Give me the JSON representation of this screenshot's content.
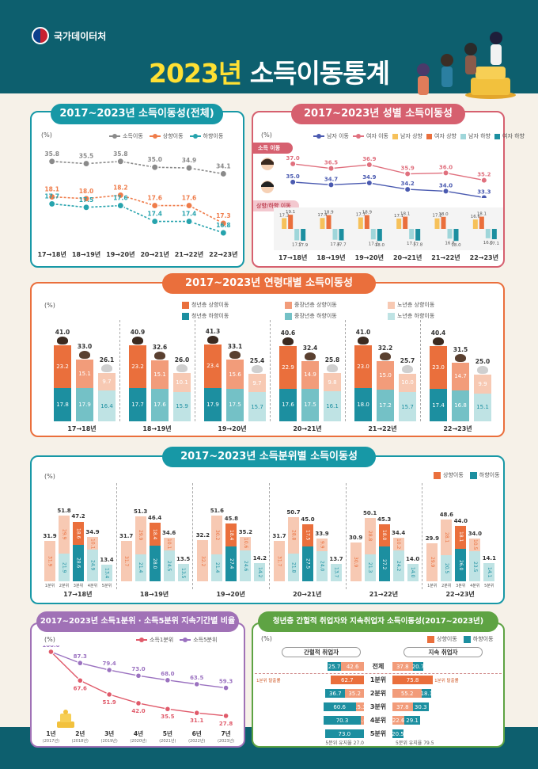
{
  "header": {
    "agency": "국가데이터처",
    "title_year": "2023년",
    "title_text": "소득이동통계"
  },
  "overall": {
    "title": "2017~2023년 소득이동성(전체)",
    "unit": "(%)",
    "legend": [
      "소득이동",
      "상향이동",
      "하향이동"
    ],
    "colors": [
      "#8a8a8a",
      "#ef7c4a",
      "#26a3ad"
    ],
    "periods": [
      "17→18년",
      "18→19년",
      "19→20년",
      "20→21년",
      "21→22년",
      "22→23년"
    ],
    "mobility": [
      35.8,
      35.5,
      35.8,
      35.0,
      34.9,
      34.1
    ],
    "upward": [
      18.1,
      18.0,
      18.2,
      17.6,
      17.6,
      17.3
    ],
    "downward": [
      17.7,
      17.5,
      17.6,
      17.4,
      17.4,
      16.8
    ]
  },
  "gender": {
    "title": "2017~2023년 성별  소득이동성",
    "unit": "(%)",
    "legend": [
      "남자 이동",
      "여자 이동",
      "남자 상향",
      "여자 상향",
      "남자 하향",
      "여자 하향"
    ],
    "tag_mobility": "소득 이동",
    "tag_updown": "상향/하향 이동",
    "periods": [
      "17→18년",
      "18→19년",
      "19→20년",
      "20→21년",
      "21→22년",
      "22→23년"
    ],
    "male_mobility": [
      35.0,
      34.7,
      34.9,
      34.2,
      34.0,
      33.3
    ],
    "female_mobility": [
      37.0,
      36.5,
      36.9,
      35.9,
      36.0,
      35.2
    ],
    "male_up": [
      17.3,
      17.4,
      17.7,
      17.1,
      17.2,
      16.6
    ],
    "female_up": [
      19.1,
      18.9,
      18.9,
      18.1,
      18.0,
      18.1
    ],
    "male_down": [
      17.7,
      17.4,
      17.2,
      17.1,
      16.8,
      16.6
    ],
    "female_down": [
      17.9,
      17.7,
      18.0,
      17.8,
      18.0,
      17.1
    ]
  },
  "age": {
    "title": "2017~2023년 연령대별  소득이동성",
    "unit": "(%)",
    "legend_up": [
      "청년층 상향이동",
      "중장년층 상향이동",
      "노년층 상향이동"
    ],
    "legend_down": [
      "청년층 하향이동",
      "중장년층 하향이동",
      "노년층 하향이동"
    ],
    "periods": [
      "17→18년",
      "18→19년",
      "19→20년",
      "20→21년",
      "21→22년",
      "22→23년"
    ],
    "groups": [
      {
        "youth": [
          41.0,
          23.2,
          17.8
        ],
        "middle": [
          33.0,
          15.1,
          17.9
        ],
        "senior": [
          26.1,
          9.7,
          16.4
        ]
      },
      {
        "youth": [
          40.9,
          23.2,
          17.7
        ],
        "middle": [
          32.6,
          15.1,
          17.6
        ],
        "senior": [
          26.0,
          10.1,
          15.9
        ]
      },
      {
        "youth": [
          41.3,
          23.4,
          17.9
        ],
        "middle": [
          33.1,
          15.6,
          17.5
        ],
        "senior": [
          25.4,
          9.7,
          15.7
        ]
      },
      {
        "youth": [
          40.6,
          22.9,
          17.6
        ],
        "middle": [
          32.4,
          14.9,
          17.5
        ],
        "senior": [
          25.8,
          9.8,
          16.1
        ]
      },
      {
        "youth": [
          41.0,
          23.0,
          18.0
        ],
        "middle": [
          32.2,
          15.0,
          17.2
        ],
        "senior": [
          25.7,
          10.0,
          15.7
        ]
      },
      {
        "youth": [
          40.4,
          23.0,
          17.4
        ],
        "middle": [
          31.5,
          14.7,
          16.8
        ],
        "senior": [
          25.0,
          9.9,
          15.1
        ]
      }
    ]
  },
  "quintile": {
    "title": "2017~2023년 소득분위별  소득이동성",
    "unit": "(%)",
    "legend": [
      "상향이동",
      "하향이동"
    ],
    "quintile_labels": [
      "1분위",
      "2분위",
      "3분위",
      "4분위",
      "5분위"
    ],
    "periods": [
      "17→18년",
      "18→19년",
      "19→20년",
      "20→21년",
      "21→22년",
      "22→23년"
    ],
    "groups": [
      {
        "total": [
          31.9,
          51.8,
          47.2,
          34.9,
          13.4
        ],
        "up": [
          31.9,
          29.9,
          18.6,
          10.1,
          0
        ],
        "down": [
          0,
          21.9,
          28.6,
          24.9,
          13.4
        ]
      },
      {
        "total": [
          31.7,
          51.3,
          46.4,
          34.6,
          13.5
        ],
        "up": [
          31.7,
          29.9,
          18.4,
          10.1,
          0
        ],
        "down": [
          0,
          21.4,
          28.0,
          24.5,
          13.5
        ]
      },
      {
        "total": [
          32.2,
          51.6,
          45.8,
          35.2,
          14.2
        ],
        "up": [
          32.2,
          30.2,
          18.4,
          10.6,
          0
        ],
        "down": [
          0,
          21.4,
          27.4,
          24.6,
          14.2
        ]
      },
      {
        "total": [
          31.7,
          50.7,
          45.0,
          33.9,
          13.7
        ],
        "up": [
          31.7,
          28.8,
          17.5,
          9.9,
          0
        ],
        "down": [
          0,
          21.8,
          27.5,
          24.0,
          13.7
        ]
      },
      {
        "total": [
          30.9,
          50.1,
          45.3,
          34.4,
          14.0
        ],
        "up": [
          30.9,
          28.8,
          18.0,
          10.2,
          0
        ],
        "down": [
          0,
          21.3,
          27.2,
          24.2,
          14.0
        ]
      },
      {
        "total": [
          29.9,
          48.6,
          44.0,
          34.0,
          14.1
        ],
        "up": [
          29.9,
          28.1,
          18.1,
          10.5,
          0
        ],
        "down": [
          0,
          20.5,
          26.0,
          23.5,
          14.1
        ]
      }
    ]
  },
  "persistence": {
    "title": "2017~2023년  소득1분위 · 소득5분위 지속기간별 비율",
    "unit": "(%)",
    "legend": [
      "소득1분위",
      "소득5분위"
    ],
    "years": [
      "1년",
      "2년",
      "3년",
      "4년",
      "5년",
      "6년",
      "7년"
    ],
    "year_sub": [
      "(2017년)",
      "(2018년)",
      "(2019년)",
      "(2020년)",
      "(2021년)",
      "(2022년)",
      "(2023년)"
    ],
    "q1": [
      100.0,
      67.6,
      51.9,
      42.0,
      35.5,
      31.1,
      27.8
    ],
    "q5": [
      100.0,
      87.3,
      79.4,
      73.0,
      68.0,
      63.5,
      59.3
    ]
  },
  "youth_jobs": {
    "title": "청년층 간헐적 취업자와 지속취업자 소득이동성(2017~2023년)",
    "unit": "(%)",
    "legend": [
      "상향이동",
      "하향이동"
    ],
    "left_header": "간헐적 취업자",
    "right_header": "지속 취업자",
    "rows": [
      "전체",
      "1분위",
      "2분위",
      "3분위",
      "4분위",
      "5분위"
    ],
    "left_up": [
      42.6,
      62.7,
      35.2,
      15.3,
      5.6,
      0
    ],
    "left_down": [
      25.7,
      0,
      36.7,
      60.6,
      70.3,
      73.0
    ],
    "right_up": [
      37.8,
      75.8,
      55.2,
      37.8,
      22.6,
      0
    ],
    "right_down": [
      20.7,
      0,
      18.1,
      30.3,
      29.1,
      20.5
    ],
    "left_escape": "1분위 탈출률",
    "right_escape": "1분위 탈출률",
    "left_keep": "5분위 유지율 27.0",
    "right_keep": "5분위 유지율 79.5"
  }
}
